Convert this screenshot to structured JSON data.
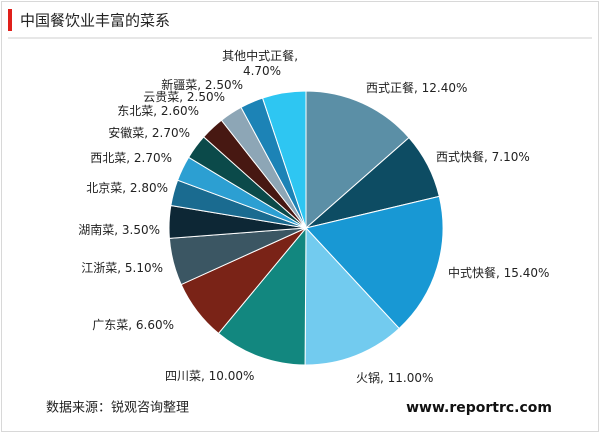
{
  "chart_data": {
    "type": "pie",
    "title": "中国餐饮业丰富的菜系",
    "categories": [
      "西式正餐",
      "西式快餐",
      "中式快餐",
      "火锅",
      "四川菜",
      "广东菜",
      "江浙菜",
      "湖南菜",
      "北京菜",
      "西北菜",
      "安徽菜",
      "东北菜",
      "云贵菜",
      "新疆菜",
      "其他中式正餐"
    ],
    "values": [
      12.4,
      7.1,
      15.4,
      11.0,
      10.0,
      6.6,
      5.1,
      3.5,
      2.8,
      2.7,
      2.7,
      2.6,
      2.5,
      2.5,
      4.7
    ],
    "value_labels": [
      "12.40%",
      "7.10%",
      "15.40%",
      "11.00%",
      "10.00%",
      "6.60%",
      "5.10%",
      "3.50%",
      "2.80%",
      "2.70%",
      "2.70%",
      "2.60%",
      "2.50%",
      "2.50%",
      "4.70%"
    ],
    "label_separator": ", ",
    "colors": [
      "#5b8fa6",
      "#0d4c63",
      "#1898d4",
      "#72cbef",
      "#12877f",
      "#7a2317",
      "#3b5663",
      "#0d2735",
      "#1a6b90",
      "#2c9fd2",
      "#0b4a4a",
      "#471812",
      "#8da6b6",
      "#1c83b6",
      "#2ec6f2"
    ],
    "source": "数据来源：锐观咨询整理",
    "website": "www.reportrc.com"
  }
}
